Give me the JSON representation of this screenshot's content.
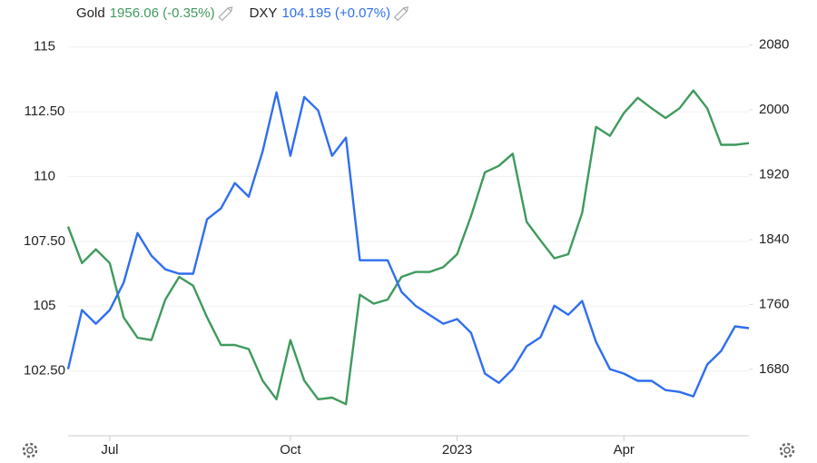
{
  "chart_data": {
    "type": "line",
    "categories": [
      null,
      null,
      null,
      "Jul",
      null,
      null,
      null,
      null,
      null,
      null,
      null,
      null,
      null,
      null,
      null,
      null,
      "Oct",
      null,
      null,
      null,
      null,
      null,
      null,
      null,
      null,
      null,
      null,
      null,
      "2023",
      null,
      null,
      null,
      null,
      null,
      null,
      null,
      null,
      null,
      null,
      null,
      "Apr",
      null,
      null,
      null,
      null,
      null,
      null,
      null,
      null,
      null
    ],
    "series": [
      {
        "name": "Gold",
        "quote": "1956.06 (-0.35%)",
        "color": "#3f9a5c",
        "axis": "y2",
        "values": [
          1856,
          1811,
          1828,
          1811,
          1744,
          1719,
          1716,
          1766,
          1794,
          1783,
          1744,
          1710,
          1710,
          1705,
          1666,
          1643,
          1716,
          1666,
          1643,
          1645,
          1637,
          1772,
          1761,
          1766,
          1794,
          1800,
          1800,
          1806,
          1822,
          1869,
          1923,
          1931,
          1946,
          1862,
          1839,
          1817,
          1822,
          1873,
          1979,
          1968,
          1996,
          2015,
          2002,
          1990,
          2002,
          2024,
          2002,
          1957,
          1957,
          1959
        ]
      },
      {
        "name": "DXY",
        "quote": "104.195 (+0.07%)",
        "color": "#2f6ef0",
        "axis": "y",
        "values": [
          102.57,
          104.85,
          104.32,
          104.85,
          105.9,
          107.82,
          106.95,
          106.42,
          106.25,
          106.25,
          108.35,
          108.77,
          109.75,
          109.22,
          110.97,
          113.25,
          110.8,
          113.07,
          112.55,
          110.8,
          111.5,
          106.77,
          106.77,
          106.77,
          105.55,
          105.02,
          104.67,
          104.32,
          104.5,
          103.97,
          102.4,
          102.04,
          102.57,
          103.45,
          103.8,
          105.02,
          104.67,
          105.2,
          103.62,
          102.57,
          102.4,
          102.12,
          102.12,
          101.76,
          101.69,
          101.52,
          102.75,
          103.27,
          104.22,
          104.15
        ]
      }
    ],
    "ylim": [
      100,
      115.76
    ],
    "yticks": [
      {
        "value": 102.5,
        "label": "102.50"
      },
      105,
      {
        "value": 107.5,
        "label": "107.50"
      },
      110,
      {
        "value": 112.5,
        "label": "112.50"
      },
      115
    ],
    "y2lim": [
      1598,
      2102
    ],
    "y2ticks": [
      1680,
      1760,
      1840,
      1920,
      2000,
      2080
    ],
    "grid": true
  }
}
